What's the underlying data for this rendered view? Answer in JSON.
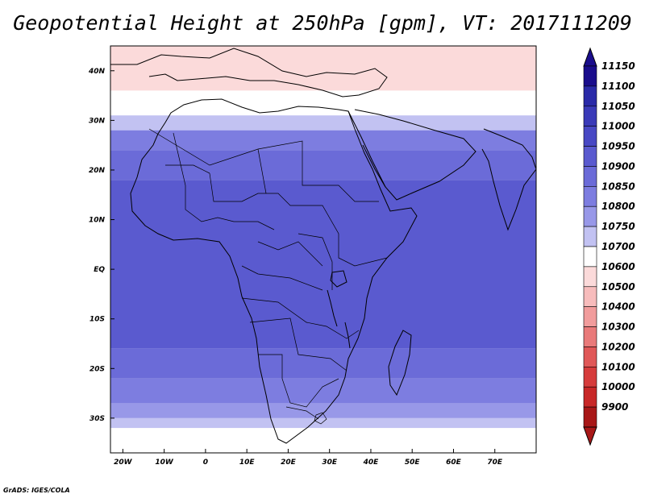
{
  "title": "Geopotential Height at 250hPa [gpm], VT: 2017111209",
  "credit": "GrADS: IGES/COLA",
  "map": {
    "lon_range": [
      -23,
      80
    ],
    "lat_range": [
      -37,
      45
    ],
    "lat_labels": [
      {
        "lat": 40,
        "text": "40N"
      },
      {
        "lat": 30,
        "text": "30N"
      },
      {
        "lat": 20,
        "text": "20N"
      },
      {
        "lat": 10,
        "text": "10N"
      },
      {
        "lat": 0,
        "text": "EQ"
      },
      {
        "lat": -10,
        "text": "10S"
      },
      {
        "lat": -20,
        "text": "20S"
      },
      {
        "lat": -30,
        "text": "30S"
      }
    ],
    "lon_labels": [
      {
        "lon": -20,
        "text": "20W"
      },
      {
        "lon": -10,
        "text": "10W"
      },
      {
        "lon": 0,
        "text": "0"
      },
      {
        "lon": 10,
        "text": "10E"
      },
      {
        "lon": 20,
        "text": "20E"
      },
      {
        "lon": 30,
        "text": "30E"
      },
      {
        "lon": 40,
        "text": "40E"
      },
      {
        "lon": 50,
        "text": "50E"
      },
      {
        "lon": 60,
        "text": "60E"
      },
      {
        "lon": 70,
        "text": "70E"
      }
    ],
    "field_bands": [
      {
        "lat_from": 45,
        "lat_to": 36,
        "value": 10550
      },
      {
        "lat_from": 36,
        "lat_to": 31,
        "value": 10650
      },
      {
        "lat_from": 31,
        "lat_to": 28,
        "value": 10725
      },
      {
        "lat_from": 28,
        "lat_to": 24,
        "value": 10825
      },
      {
        "lat_from": 24,
        "lat_to": 18,
        "value": 10875
      },
      {
        "lat_from": 18,
        "lat_to": -16,
        "value": 10925
      },
      {
        "lat_from": -16,
        "lat_to": -22,
        "value": 10875
      },
      {
        "lat_from": -22,
        "lat_to": -27,
        "value": 10825
      },
      {
        "lat_from": -27,
        "lat_to": -30,
        "value": 10775
      },
      {
        "lat_from": -30,
        "lat_to": -32,
        "value": 10725
      },
      {
        "lat_from": -32,
        "lat_to": -37,
        "value": 10650
      }
    ]
  },
  "colorbar": {
    "levels": [
      "11150",
      "11100",
      "11050",
      "11000",
      "10950",
      "10900",
      "10850",
      "10800",
      "10750",
      "10700",
      "10600",
      "10500",
      "10400",
      "10300",
      "10200",
      "10100",
      "10000",
      "9900"
    ],
    "colors": [
      "#1a0d8c",
      "#2a2aa8",
      "#3a3ab8",
      "#4848c4",
      "#5a5acf",
      "#6b6bd8",
      "#7d7de0",
      "#9898e8",
      "#c2c2f2",
      "#ffffff",
      "#fbdada",
      "#f7bcbc",
      "#f19c9c",
      "#e97a7a",
      "#e05858",
      "#d63c3c",
      "#c82828",
      "#a81818"
    ]
  }
}
